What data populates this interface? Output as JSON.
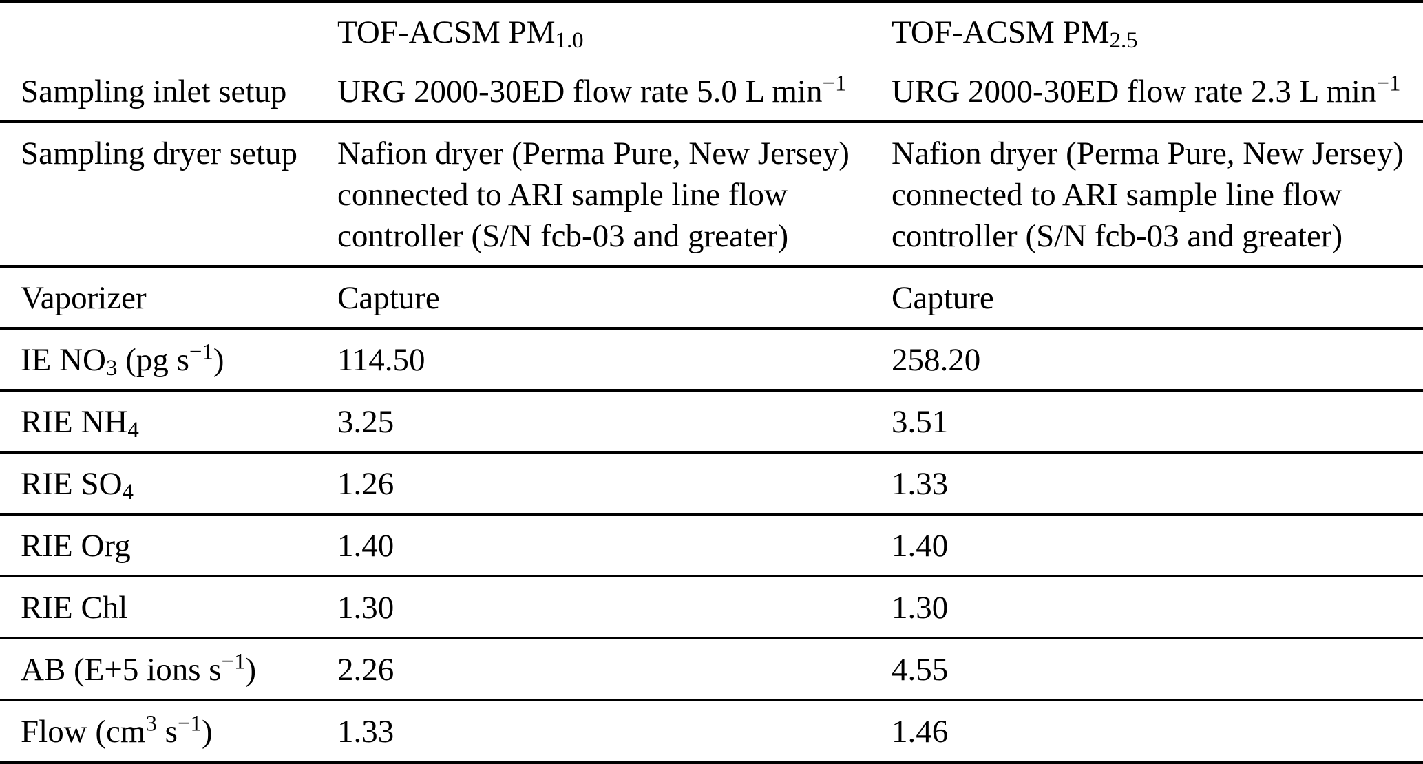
{
  "colors": {
    "text": "#000000",
    "background": "#ffffff",
    "rule": "#000000"
  },
  "table": {
    "header": {
      "label_col": [],
      "pm10_col": [
        {
          "t": "TOF-ACSM PM"
        },
        {
          "t": "1.0",
          "v": "sub"
        }
      ],
      "pm25_col": [
        {
          "t": "TOF-ACSM PM"
        },
        {
          "t": "2.5",
          "v": "sub"
        }
      ]
    },
    "rows": [
      {
        "name": "sampling-inlet-setup",
        "label": [
          {
            "t": "Sampling inlet setup"
          }
        ],
        "pm10": [
          {
            "t": "URG 2000-30ED flow rate 5.0 L min"
          },
          {
            "t": "−1",
            "v": "sup"
          }
        ],
        "pm25": [
          {
            "t": "URG 2000-30ED flow rate 2.3 L min"
          },
          {
            "t": "−1",
            "v": "sup"
          }
        ]
      },
      {
        "name": "sampling-dryer-setup",
        "label": [
          {
            "t": "Sampling dryer setup"
          }
        ],
        "pm10": [
          {
            "t": "Nafion dryer (Perma Pure, New Jersey) connected to ARI sample line flow controller (S/N fcb-03 and greater)"
          }
        ],
        "pm25": [
          {
            "t": "Nafion dryer (Perma Pure, New Jersey) connected to ARI sample line flow controller (S/N fcb-03 and greater)"
          }
        ]
      },
      {
        "name": "vaporizer",
        "label": [
          {
            "t": "Vaporizer"
          }
        ],
        "pm10": [
          {
            "t": "Capture"
          }
        ],
        "pm25": [
          {
            "t": "Capture"
          }
        ]
      },
      {
        "name": "ie-no3",
        "label": [
          {
            "t": "IE NO"
          },
          {
            "t": "3",
            "v": "sub"
          },
          {
            "t": " (pg s"
          },
          {
            "t": "−1",
            "v": "sup"
          },
          {
            "t": ")"
          }
        ],
        "pm10": [
          {
            "t": "114.50"
          }
        ],
        "pm25": [
          {
            "t": "258.20"
          }
        ]
      },
      {
        "name": "rie-nh4",
        "label": [
          {
            "t": "RIE NH"
          },
          {
            "t": "4",
            "v": "sub"
          }
        ],
        "pm10": [
          {
            "t": "3.25"
          }
        ],
        "pm25": [
          {
            "t": "3.51"
          }
        ]
      },
      {
        "name": "rie-so4",
        "label": [
          {
            "t": "RIE SO"
          },
          {
            "t": "4",
            "v": "sub"
          }
        ],
        "pm10": [
          {
            "t": "1.26"
          }
        ],
        "pm25": [
          {
            "t": "1.33"
          }
        ]
      },
      {
        "name": "rie-org",
        "label": [
          {
            "t": "RIE Org"
          }
        ],
        "pm10": [
          {
            "t": "1.40"
          }
        ],
        "pm25": [
          {
            "t": "1.40"
          }
        ]
      },
      {
        "name": "rie-chl",
        "label": [
          {
            "t": "RIE Chl"
          }
        ],
        "pm10": [
          {
            "t": "1.30"
          }
        ],
        "pm25": [
          {
            "t": "1.30"
          }
        ]
      },
      {
        "name": "ab",
        "label": [
          {
            "t": "AB (E+5 ions s"
          },
          {
            "t": "−1",
            "v": "sup"
          },
          {
            "t": ")"
          }
        ],
        "pm10": [
          {
            "t": "2.26"
          }
        ],
        "pm25": [
          {
            "t": "4.55"
          }
        ]
      },
      {
        "name": "flow",
        "label": [
          {
            "t": "Flow (cm"
          },
          {
            "t": "3",
            "v": "sup"
          },
          {
            "t": " s"
          },
          {
            "t": "−1",
            "v": "sup"
          },
          {
            "t": ")"
          }
        ],
        "pm10": [
          {
            "t": "1.33"
          }
        ],
        "pm25": [
          {
            "t": "1.46"
          }
        ]
      }
    ]
  }
}
